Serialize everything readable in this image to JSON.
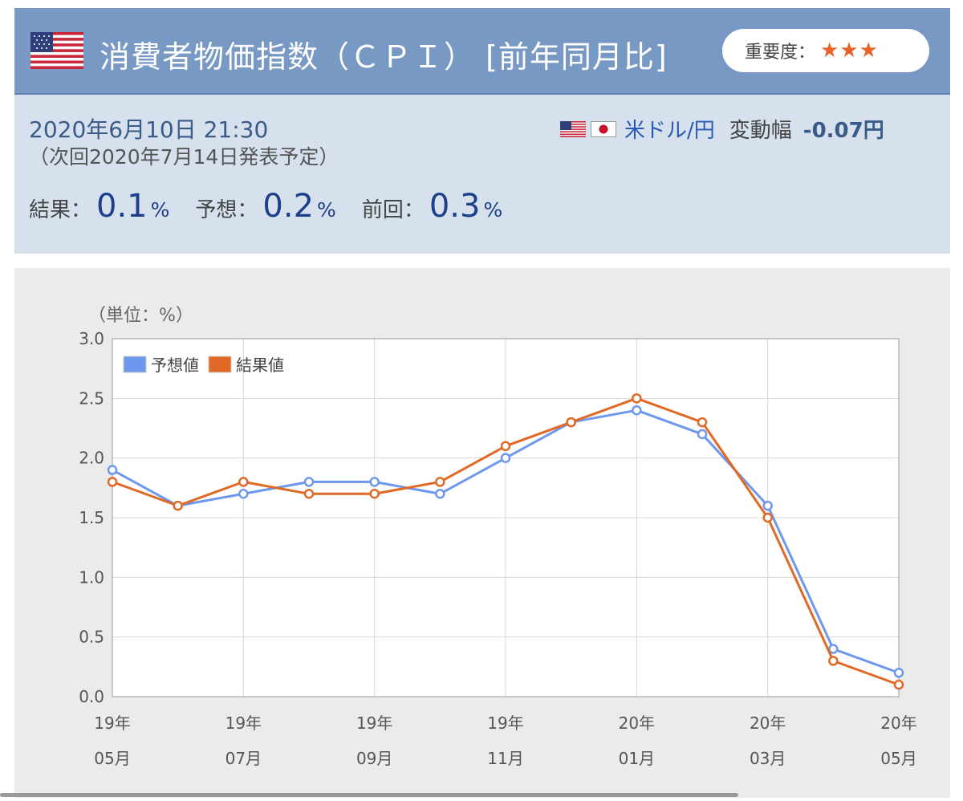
{
  "header": {
    "title": "消費者物価指数（ＣＰＩ） [前年同月比]",
    "importance_label": "重要度：",
    "importance_stars": "★★★"
  },
  "info": {
    "datetime": "2020年6月10日 21:30",
    "next_release": "（次回2020年7月14日発表予定）",
    "currency_pair": "米ドル/円",
    "change_label": "変動幅",
    "change_value": "-0.07円",
    "result_label": "結果：",
    "result_value": "0.1",
    "forecast_label": "予想：",
    "forecast_value": "0.2",
    "previous_label": "前回：",
    "previous_value": "0.3",
    "percent_sign": "%"
  },
  "colors": {
    "forecast": "#6e97ee",
    "result": "#e06a25",
    "header_bg": "#7799c4",
    "info_bg": "#d6e1ed",
    "value_text": "#1d3f8a"
  },
  "chart_data": {
    "type": "line",
    "unit_label": "（単位：%）",
    "categories": [
      "19年05月",
      "19年06月",
      "19年07月",
      "19年08月",
      "19年09月",
      "19年10月",
      "19年11月",
      "19年12月",
      "20年01月",
      "20年02月",
      "20年03月",
      "20年04月",
      "20年05月"
    ],
    "x_tick_labels": [
      {
        "index": 0,
        "line1": "19年",
        "line2": "05月"
      },
      {
        "index": 2,
        "line1": "19年",
        "line2": "07月"
      },
      {
        "index": 4,
        "line1": "19年",
        "line2": "09月"
      },
      {
        "index": 6,
        "line1": "19年",
        "line2": "11月"
      },
      {
        "index": 8,
        "line1": "20年",
        "line2": "01月"
      },
      {
        "index": 10,
        "line1": "20年",
        "line2": "03月"
      },
      {
        "index": 12,
        "line1": "20年",
        "line2": "05月"
      }
    ],
    "y_ticks": [
      "0.0",
      "0.5",
      "1.0",
      "1.5",
      "2.0",
      "2.5",
      "3.0"
    ],
    "ylim": [
      0,
      3.0
    ],
    "grid": true,
    "legend_position": "top-left",
    "series": [
      {
        "name": "予想値",
        "color": "#6e97ee",
        "values": [
          1.9,
          1.6,
          1.7,
          1.8,
          1.8,
          1.7,
          2.0,
          2.3,
          2.4,
          2.2,
          1.6,
          0.4,
          0.2
        ]
      },
      {
        "name": "結果値",
        "color": "#e06a25",
        "values": [
          1.8,
          1.6,
          1.8,
          1.7,
          1.7,
          1.8,
          2.1,
          2.3,
          2.5,
          2.3,
          1.5,
          0.3,
          0.1
        ]
      }
    ]
  }
}
